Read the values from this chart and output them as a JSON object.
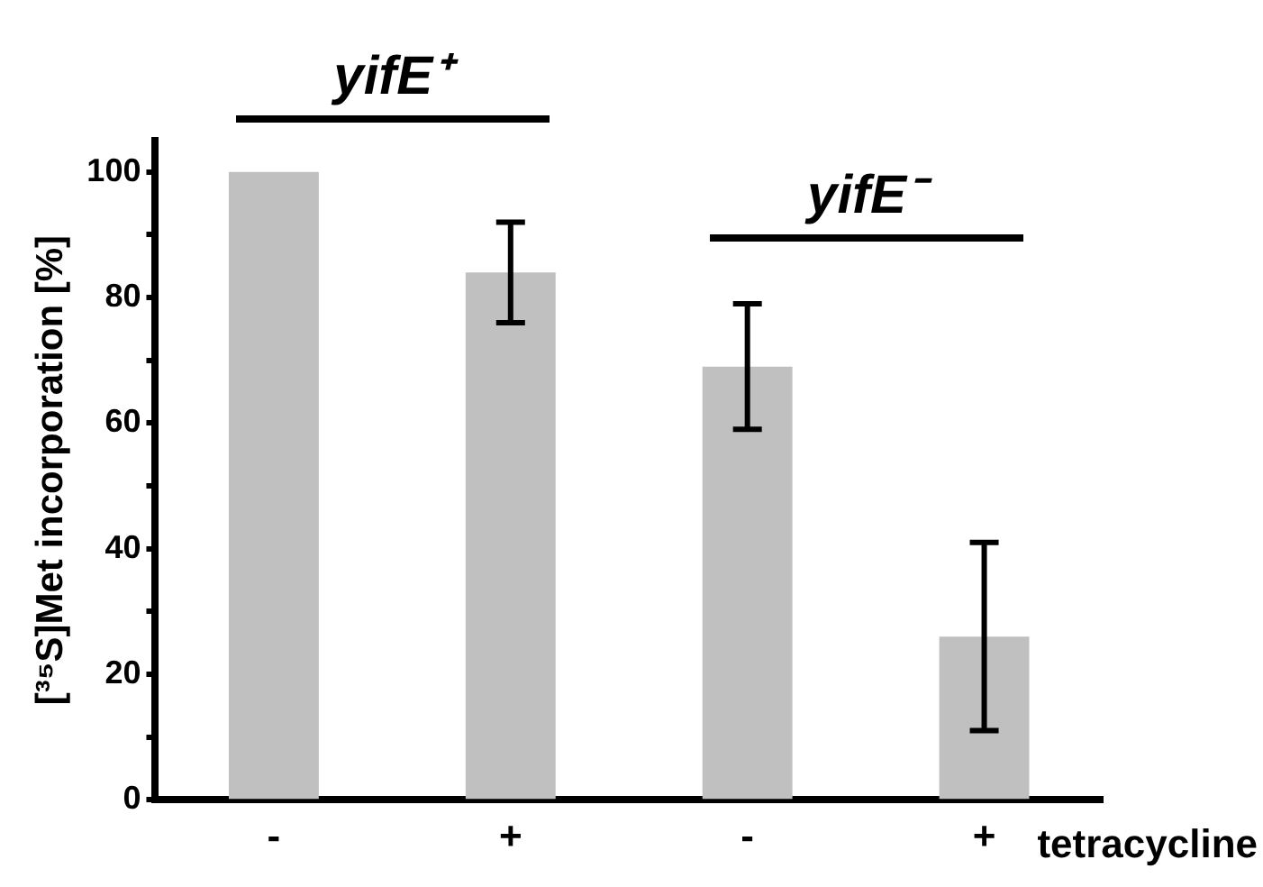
{
  "chart_data": {
    "type": "bar",
    "categories": [
      "-",
      "+",
      "-",
      "+"
    ],
    "values": [
      100,
      84,
      69,
      26
    ],
    "errors": [
      null,
      [
        76,
        92
      ],
      [
        59,
        79
      ],
      [
        11,
        41
      ]
    ],
    "color": "#c0c0c0",
    "ylabel": "[³⁵S]Met incorporation [%]",
    "ylim": [
      0,
      105
    ],
    "yticks": [
      0,
      {
        "value": 10,
        "label": null
      },
      20,
      {
        "value": 30,
        "label": null
      },
      40,
      {
        "value": 50,
        "label": null
      },
      60,
      {
        "value": 70,
        "label": null
      },
      80,
      {
        "value": 90,
        "label": null
      },
      100
    ],
    "grid": false,
    "legend": false,
    "xlabel": "tetracycline",
    "annotations": [
      "yifE⁺",
      "yifE⁻"
    ]
  }
}
